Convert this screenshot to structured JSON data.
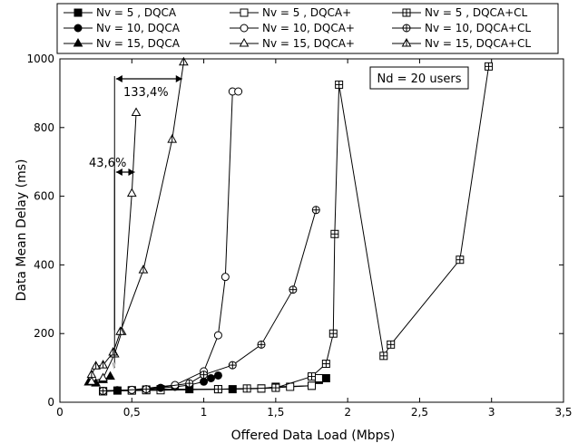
{
  "chart_data": {
    "type": "line",
    "xlabel": "Offered Data Load (Mbps)",
    "ylabel": "Data Mean Delay  (ms)",
    "xlim": [
      0,
      3.5
    ],
    "ylim": [
      0,
      1000
    ],
    "xticks": [
      0,
      0.5,
      1,
      1.5,
      2,
      2.5,
      3,
      3.5
    ],
    "xtick_labels": [
      "0",
      "0,5",
      "1",
      "1,5",
      "2",
      "2,5",
      "3",
      "3,5"
    ],
    "yticks": [
      0,
      200,
      400,
      600,
      800,
      1000
    ],
    "ytick_labels": [
      "0",
      "200",
      "400",
      "600",
      "800",
      "1000"
    ],
    "grid": false,
    "legend_placement": "top",
    "series": [
      {
        "name": "Nv =  5 , DQCA",
        "marker": "square-filled",
        "x": [
          0.3,
          0.4,
          0.5,
          0.6,
          0.7,
          0.9,
          1.2,
          1.4,
          1.5,
          1.75,
          1.8,
          1.85
        ],
        "y": [
          32,
          34,
          35,
          37,
          38,
          38,
          38,
          40,
          45,
          48,
          65,
          70
        ]
      },
      {
        "name": "Nv =  5 , DQCA+",
        "marker": "square-open",
        "x": [
          0.3,
          0.5,
          0.7,
          1.1,
          1.4,
          1.6,
          1.75,
          1.8
        ],
        "y": [
          32,
          34,
          35,
          38,
          40,
          45,
          48,
          70
        ]
      },
      {
        "name": "Nv =  5 , DQCA+CL",
        "marker": "square-crossed",
        "x": [
          0.3,
          0.6,
          1.1,
          1.3,
          1.5,
          1.75,
          1.85,
          1.9,
          1.91,
          1.94,
          2.25,
          2.3,
          2.78,
          2.98
        ],
        "y": [
          32,
          35,
          38,
          40,
          42,
          75,
          112,
          200,
          490,
          925,
          135,
          168,
          415,
          978
        ]
      },
      {
        "name": "Nv = 10, DQCA",
        "marker": "circle-filled",
        "x": [
          0.3,
          0.4,
          0.5,
          0.6,
          0.7,
          0.8,
          0.9,
          1.0,
          1.05,
          1.1
        ],
        "y": [
          33,
          35,
          36,
          38,
          42,
          45,
          50,
          60,
          70,
          78
        ]
      },
      {
        "name": "Nv = 10, DQCA+",
        "marker": "circle-open",
        "x": [
          0.3,
          0.5,
          0.8,
          1.0,
          1.1,
          1.15,
          1.2,
          1.24
        ],
        "y": [
          33,
          36,
          50,
          90,
          195,
          365,
          905,
          905
        ]
      },
      {
        "name": "Nv = 10, DQCA+CL",
        "marker": "circle-crossed",
        "x": [
          0.3,
          0.6,
          0.9,
          1.0,
          1.2,
          1.4,
          1.62,
          1.78
        ],
        "y": [
          33,
          38,
          55,
          80,
          108,
          168,
          328,
          560
        ]
      },
      {
        "name": "Nv = 15, DQCA",
        "marker": "triangle-filled",
        "x": [
          0.2,
          0.25,
          0.3,
          0.35
        ],
        "y": [
          58,
          55,
          65,
          75
        ]
      },
      {
        "name": "Nv = 15, DQCA+",
        "marker": "triangle-open",
        "x": [
          0.22,
          0.3,
          0.38,
          0.43,
          0.5,
          0.53
        ],
        "y": [
          60,
          70,
          140,
          205,
          608,
          843
        ]
      },
      {
        "name": "Nv = 15, DQCA+CL",
        "marker": "triangle-crossed",
        "x": [
          0.22,
          0.25,
          0.3,
          0.37,
          0.42,
          0.58,
          0.78,
          0.86
        ],
        "y": [
          80,
          105,
          108,
          145,
          205,
          385,
          765,
          990
        ]
      }
    ],
    "annotations": {
      "box_label": "Nd = 20 users",
      "pct_high": "133,4%",
      "pct_low": "43,6%"
    }
  }
}
